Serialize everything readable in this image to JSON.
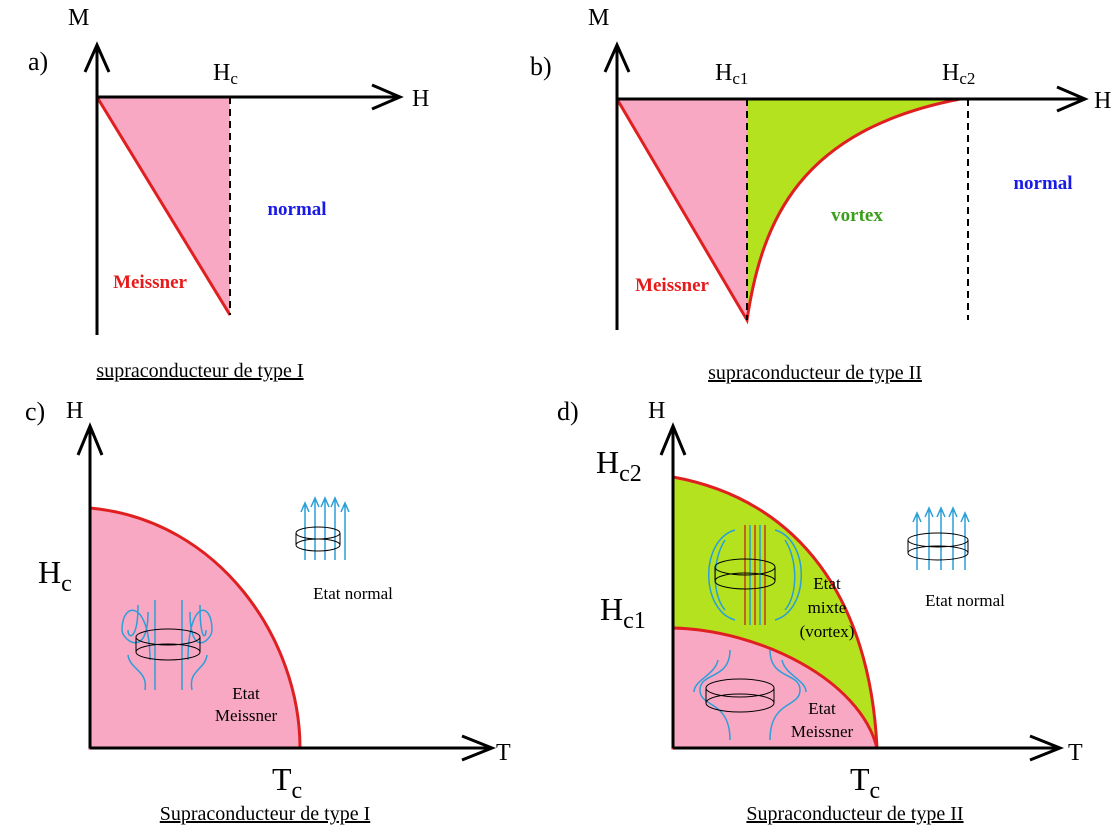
{
  "panels": [
    {
      "label": "a)",
      "y_axis": "M",
      "x_axis": "H",
      "field_marks": [
        {
          "main": "H",
          "sub": "c"
        }
      ],
      "regions": [
        "normal",
        "Meissner"
      ],
      "caption": "supraconducteur de type I"
    },
    {
      "label": "b)",
      "y_axis": "M",
      "x_axis": "H",
      "field_marks": [
        {
          "main": "H",
          "sub": "c1"
        },
        {
          "main": "H",
          "sub": "c2"
        }
      ],
      "regions": [
        "vortex",
        "normal",
        "Meissner"
      ],
      "caption": "supraconducteur de type II"
    },
    {
      "label": "c)",
      "y_axis": "H",
      "x_axis": "T",
      "field_marks": [
        {
          "main": "H",
          "sub": "c"
        }
      ],
      "temp_mark": {
        "main": "T",
        "sub": "c"
      },
      "regions": [
        [
          "Etat normal"
        ],
        [
          "Etat",
          "Meissner"
        ]
      ],
      "caption": "Supraconducteur de type I"
    },
    {
      "label": "d)",
      "y_axis": "H",
      "x_axis": "T",
      "field_marks": [
        {
          "main": "H",
          "sub": "c2"
        },
        {
          "main": "H",
          "sub": "c1"
        }
      ],
      "temp_mark": {
        "main": "T",
        "sub": "c"
      },
      "regions": [
        [
          "Etat",
          "mixte",
          "(vortex)"
        ],
        [
          "Etat normal"
        ],
        [
          "Etat",
          "Meissner"
        ]
      ],
      "caption": "Supraconducteur de type II"
    }
  ]
}
